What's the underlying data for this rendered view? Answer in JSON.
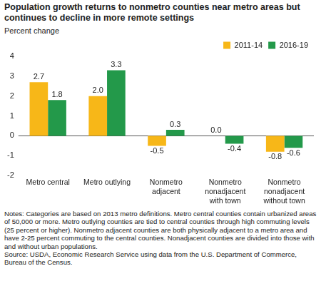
{
  "chart_data": {
    "type": "bar",
    "title": "Population growth returns to nonmetro counties near metro areas but continues to decline in more remote settings",
    "y_label": "Percent change",
    "categories": [
      "Metro central",
      "Metro outlying",
      "Nonmetro adjacent",
      "Nonmetro nonadjacent with town",
      "Nonmetro nonadjacent without town"
    ],
    "series": [
      {
        "name": "2011-14",
        "color": "#f7b718",
        "values": [
          2.7,
          2.0,
          -0.5,
          0.0,
          -0.8
        ],
        "value_labels": [
          "2.7",
          "2.0",
          "-0.5",
          "0.0",
          "-0.8"
        ]
      },
      {
        "name": "2016-19",
        "color": "#23994a",
        "values": [
          1.8,
          3.3,
          0.3,
          -0.4,
          -0.6
        ],
        "value_labels": [
          "1.8",
          "3.3",
          "0.3",
          "-0.4",
          "-0.6"
        ]
      }
    ],
    "ylim": [
      -2,
      4
    ],
    "yticks": [
      -2,
      -1,
      0,
      1,
      2,
      3,
      4
    ],
    "grid": false,
    "legend": "upper right",
    "data_labels": true,
    "notes": "Notes: Categories are based on 2013 metro definitions. Metro central counties contain urbanized areas of 50,000 or more. Metro outlying counties are tied to central counties through high commuting levels (25 percent or higher). Nonmetro adjacent counties are both physically adjacent to a metro area and have 2-25 percent commuting to the central counties. Nonadjacent counties are divided into those with and without urban populations.",
    "source": "Source: USDA, Economic Research Service using data from the U.S. Department of Commerce, Bureau of the Census."
  }
}
